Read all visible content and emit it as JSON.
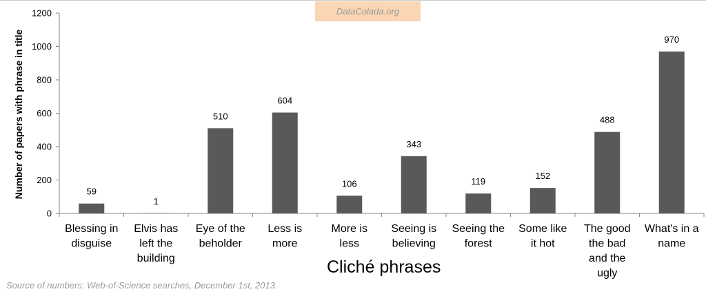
{
  "watermark": "DataColada.org",
  "source_note": "Source of numbers: Web-of-Science searches, December 1st, 2013.",
  "chart_data": {
    "type": "bar",
    "xlabel": "Cliché phrases",
    "ylabel": "Number of papers with phrase in title",
    "ylim": [
      0,
      1200
    ],
    "yticks": [
      0,
      200,
      400,
      600,
      800,
      1000,
      1200
    ],
    "categories": [
      [
        "Blessing in",
        "disguise"
      ],
      [
        "Elvis has",
        "left the",
        "building"
      ],
      [
        "Eye of the",
        "beholder"
      ],
      [
        "Less is",
        "more"
      ],
      [
        "More is",
        "less"
      ],
      [
        "Seeing is",
        "believing"
      ],
      [
        "Seeing the",
        "forest"
      ],
      [
        "Some like",
        "it hot"
      ],
      [
        "The good",
        "the bad",
        "and the",
        "ugly"
      ],
      [
        "What's in a",
        "name"
      ]
    ],
    "values": [
      59,
      1,
      510,
      604,
      106,
      343,
      119,
      152,
      488,
      970
    ],
    "data_labels": [
      "59",
      "1",
      "510",
      "604",
      "106",
      "343",
      "119",
      "152",
      "488",
      "970"
    ],
    "bar_color": "#595959",
    "grid": false,
    "legend": "none"
  }
}
